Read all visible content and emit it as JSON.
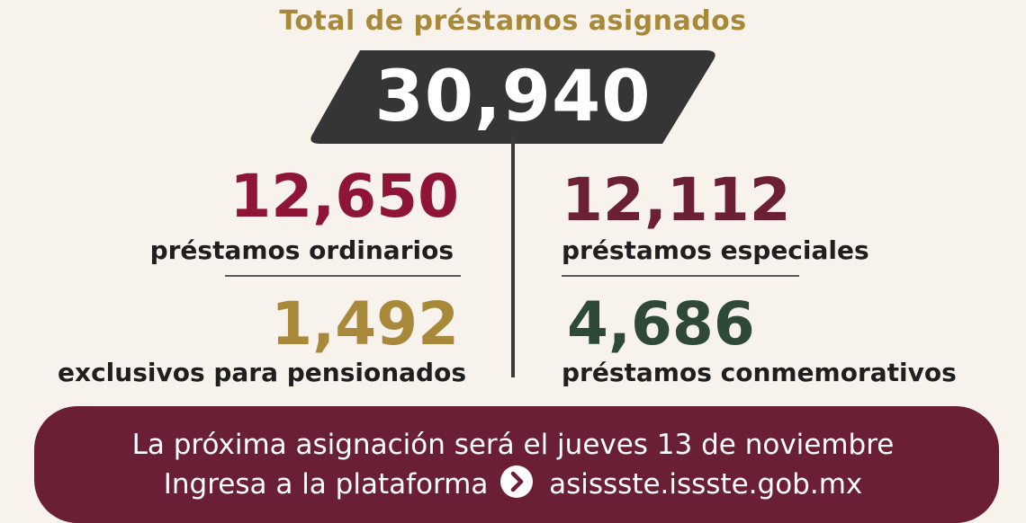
{
  "colors": {
    "gold": "#a8893a",
    "maroon": "#6b1f35",
    "crimson": "#8e1536",
    "wine": "#6b2036",
    "green": "#2e4a36",
    "badge": "#353535"
  },
  "header": {
    "title": "Total de préstamos asignados"
  },
  "total": {
    "value": "30,940"
  },
  "stats": {
    "ordinarios": {
      "value": "12,650",
      "label": "préstamos ordinarios"
    },
    "especiales": {
      "value": "12,112",
      "label": "préstamos especiales"
    },
    "pensionados": {
      "value": "1,492",
      "label": "exclusivos para pensionados"
    },
    "conmemorativos": {
      "value": "4,686",
      "label": "préstamos conmemorativos"
    }
  },
  "banner": {
    "line1": "La próxima asignación será el jueves 13 de noviembre",
    "line2_prefix": "Ingresa a la plataforma",
    "arrow_icon": "chevron-right-circle-icon",
    "line2_url": "asissste.issste.gob.mx"
  }
}
